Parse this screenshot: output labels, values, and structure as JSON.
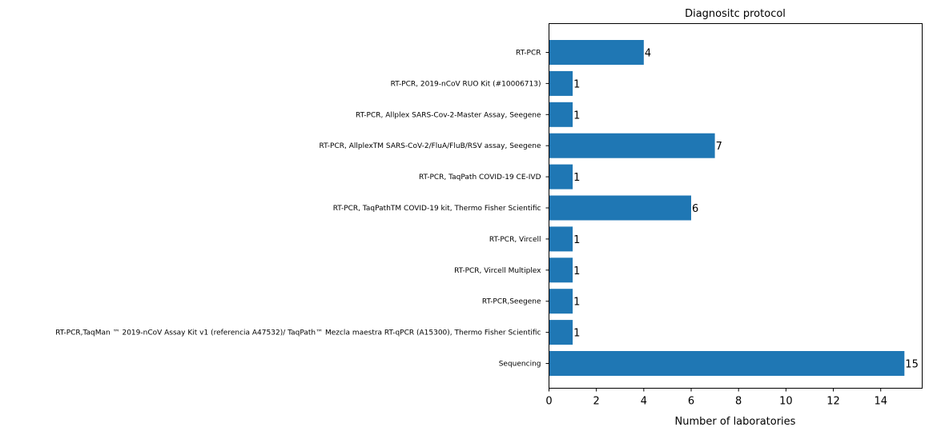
{
  "chart_data": {
    "type": "bar",
    "orientation": "horizontal",
    "title": "Diagnositc protocol",
    "xlabel": "Number of laboratories",
    "ylabel": "",
    "xlim": [
      0,
      15.75
    ],
    "xticks": [
      0,
      2,
      4,
      6,
      8,
      10,
      12,
      14
    ],
    "bar_color": "#1f77b4",
    "categories": [
      "RT-PCR",
      "RT-PCR, 2019-nCoV RUO Kit (#10006713)",
      "RT-PCR, Allplex SARS-Cov-2-Master Assay, Seegene ",
      "RT-PCR, AllplexTM SARS-CoV-2/FluA/FluB/RSV assay, Seegene",
      "RT-PCR, TaqPath COVID-19 CE-IVD",
      "RT-PCR, TaqPathTM COVID-19 kit, Thermo Fisher Scientific",
      "RT-PCR, Vircell",
      "RT-PCR, Vircell Multiplex",
      "RT-PCR,Seegene",
      "RT-PCR,TaqMan ™ 2019-nCoV Assay Kit v1 (referencia A47532)/ TaqPath™ Mezcla maestra RT-qPCR (A15300), Thermo Fisher Scientific  ",
      "Sequencing"
    ],
    "values": [
      4,
      1,
      1,
      7,
      1,
      6,
      1,
      1,
      1,
      1,
      15
    ],
    "data_labels": [
      "4",
      "1",
      "1",
      "7",
      "1",
      "6",
      "1",
      "1",
      "1",
      "1",
      "15"
    ]
  }
}
